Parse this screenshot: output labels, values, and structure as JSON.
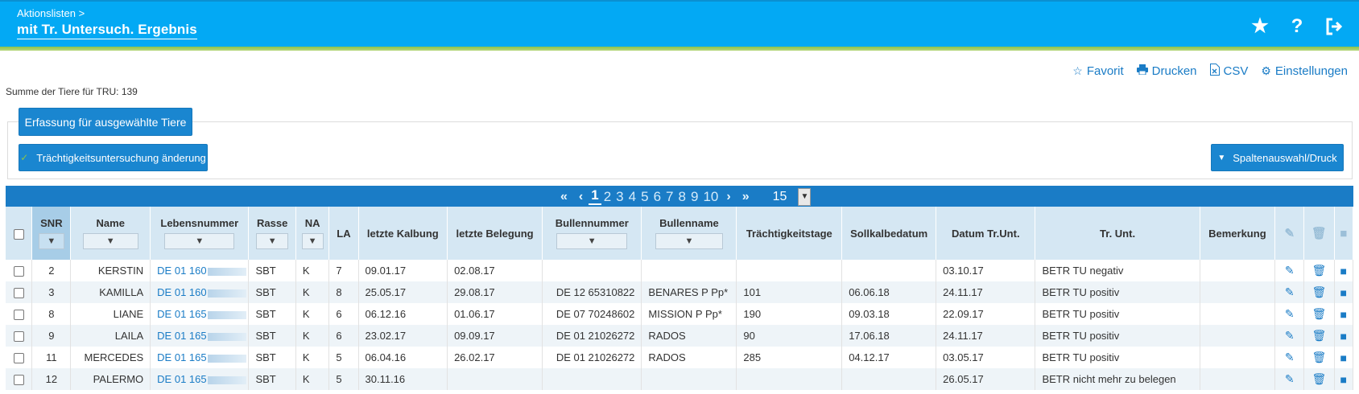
{
  "header": {
    "breadcrumb": "Aktionslisten >",
    "title": "mit Tr. Untersuch. Ergebnis",
    "icons": [
      "star-icon",
      "help-icon",
      "logout-icon"
    ]
  },
  "toolbar": {
    "favorit": "Favorit",
    "drucken": "Drucken",
    "csv": "CSV",
    "einstellungen": "Einstellungen"
  },
  "summary": "Summe der Tiere für TRU: 139",
  "buttons": {
    "erfassung": "Erfassung für ausgewählte Tiere",
    "traechtigkeit": "Trächtigkeitsuntersuchung änderung",
    "spalten": "Spaltenauswahl/Druck"
  },
  "pager": {
    "pages": [
      "1",
      "2",
      "3",
      "4",
      "5",
      "6",
      "7",
      "8",
      "9",
      "10"
    ],
    "current": "1",
    "per_page": "15"
  },
  "columns": {
    "snr": "SNR",
    "name": "Name",
    "lebensnummer": "Lebensnummer",
    "rasse": "Rasse",
    "na": "NA",
    "la": "LA",
    "letzte_kalbung": "letzte Kalbung",
    "letzte_belegung": "letzte Belegung",
    "bullennummer": "Bullennummer",
    "bullenname": "Bullenname",
    "traechtigkeitstage": "Trächtigkeitstage",
    "sollkalbedatum": "Sollkalbedatum",
    "datum_trunt": "Datum Tr.Unt.",
    "tr_unt": "Tr. Unt.",
    "bemerkung": "Bemerkung"
  },
  "rows": [
    {
      "snr": "2",
      "name": "KERSTIN",
      "lebensnummer": "DE 01 160",
      "rasse": "SBT",
      "na": "K",
      "la": "7",
      "letzte_kalbung": "09.01.17",
      "letzte_belegung": "02.08.17",
      "bullennummer": "",
      "bullenname": "",
      "traechtigkeitstage": "",
      "sollkalbedatum": "",
      "datum_trunt": "03.10.17",
      "tr_unt": "BETR TU negativ",
      "bemerkung": ""
    },
    {
      "snr": "3",
      "name": "KAMILLA",
      "lebensnummer": "DE 01 160",
      "rasse": "SBT",
      "na": "K",
      "la": "8",
      "letzte_kalbung": "25.05.17",
      "letzte_belegung": "29.08.17",
      "bullennummer": "DE 12 65310822",
      "bullenname": "BENARES P Pp*",
      "traechtigkeitstage": "101",
      "sollkalbedatum": "06.06.18",
      "datum_trunt": "24.11.17",
      "tr_unt": "BETR TU positiv",
      "bemerkung": ""
    },
    {
      "snr": "8",
      "name": "LIANE",
      "lebensnummer": "DE 01 165",
      "rasse": "SBT",
      "na": "K",
      "la": "6",
      "letzte_kalbung": "06.12.16",
      "letzte_belegung": "01.06.17",
      "bullennummer": "DE 07 70248602",
      "bullenname": "MISSION P Pp*",
      "traechtigkeitstage": "190",
      "sollkalbedatum": "09.03.18",
      "datum_trunt": "22.09.17",
      "tr_unt": "BETR TU positiv",
      "bemerkung": ""
    },
    {
      "snr": "9",
      "name": "LAILA",
      "lebensnummer": "DE 01 165",
      "rasse": "SBT",
      "na": "K",
      "la": "6",
      "letzte_kalbung": "23.02.17",
      "letzte_belegung": "09.09.17",
      "bullennummer": "DE 01 21026272",
      "bullenname": "RADOS",
      "traechtigkeitstage": "90",
      "sollkalbedatum": "17.06.18",
      "datum_trunt": "24.11.17",
      "tr_unt": "BETR TU positiv",
      "bemerkung": ""
    },
    {
      "snr": "11",
      "name": "MERCEDES",
      "lebensnummer": "DE 01 165",
      "rasse": "SBT",
      "na": "K",
      "la": "5",
      "letzte_kalbung": "06.04.16",
      "letzte_belegung": "26.02.17",
      "bullennummer": "DE 01 21026272",
      "bullenname": "RADOS",
      "traechtigkeitstage": "285",
      "sollkalbedatum": "04.12.17",
      "datum_trunt": "03.05.17",
      "tr_unt": "BETR TU positiv",
      "bemerkung": ""
    },
    {
      "snr": "12",
      "name": "PALERMO",
      "lebensnummer": "DE 01 165",
      "rasse": "SBT",
      "na": "K",
      "la": "5",
      "letzte_kalbung": "30.11.16",
      "letzte_belegung": "",
      "bullennummer": "",
      "bullenname": "",
      "traechtigkeitstage": "",
      "sollkalbedatum": "",
      "datum_trunt": "26.05.17",
      "tr_unt": "BETR nicht mehr zu belegen",
      "bemerkung": ""
    }
  ],
  "colors": {
    "header": "#03a9f4",
    "accent": "#1a7cc6",
    "green_bar": "#8bc34a"
  }
}
